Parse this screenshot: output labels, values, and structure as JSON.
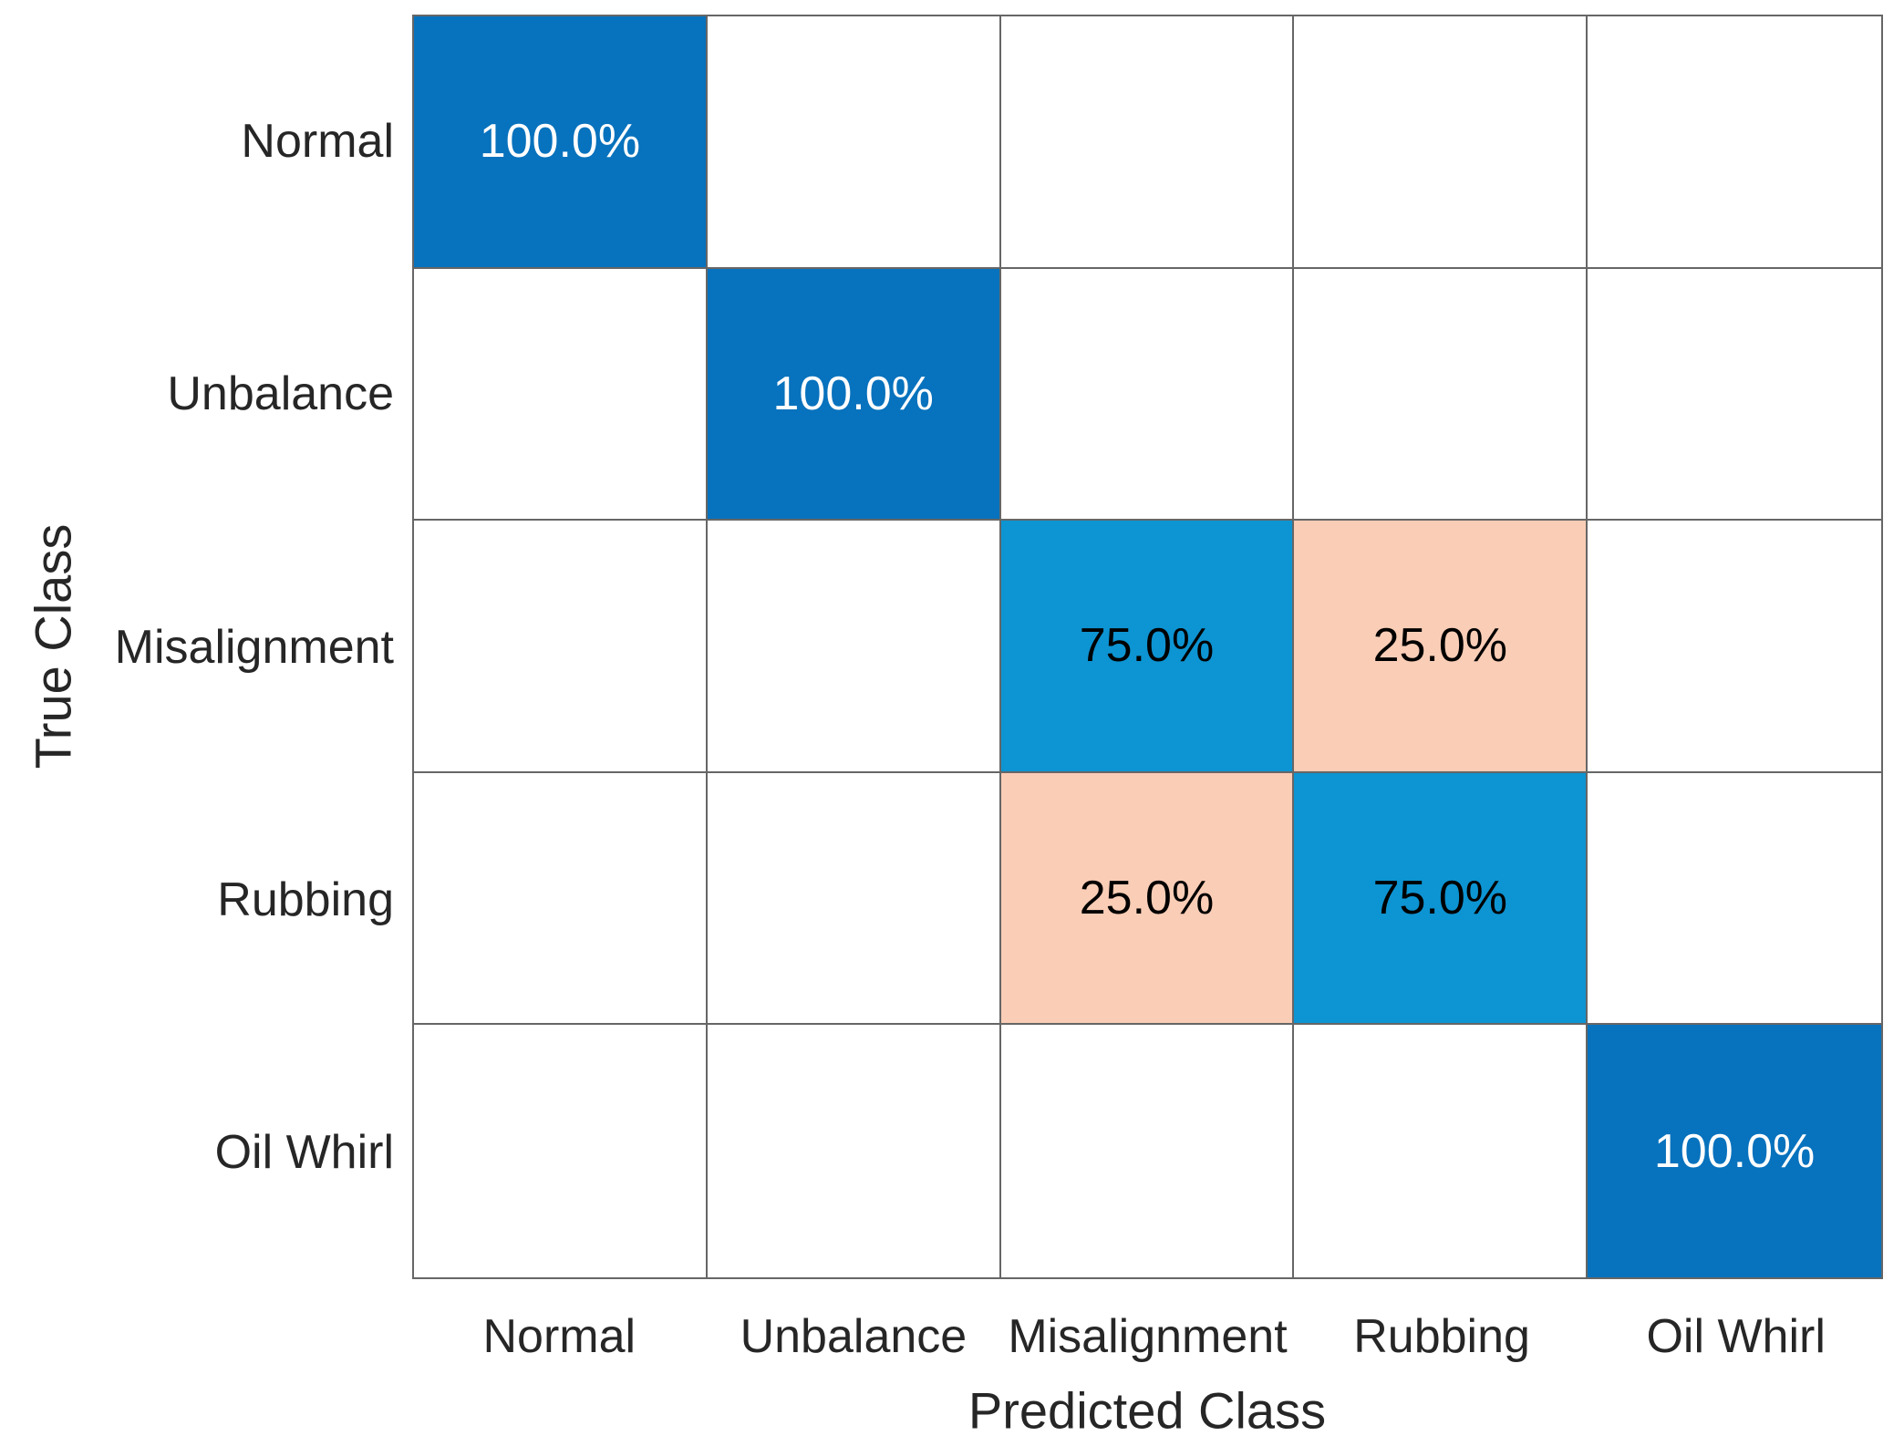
{
  "chart_data": {
    "type": "heatmap",
    "variant": "confusion-matrix",
    "title": "",
    "xlabel": "Predicted Class",
    "ylabel": "True Class",
    "classes": [
      "Normal",
      "Unbalance",
      "Misalignment",
      "Rubbing",
      "Oil Whirl"
    ],
    "x_tick_labels": [
      "Normal",
      "Unbalance",
      "Misalignment",
      "Rubbing",
      "Oil Whirl"
    ],
    "y_tick_labels": [
      "Normal",
      "Unbalance",
      "Misalignment",
      "Rubbing",
      "Oil Whirl"
    ],
    "values_percent": [
      [
        100.0,
        0,
        0,
        0,
        0
      ],
      [
        0,
        100.0,
        0,
        0,
        0
      ],
      [
        0,
        0,
        75.0,
        25.0,
        0
      ],
      [
        0,
        0,
        25.0,
        75.0,
        0
      ],
      [
        0,
        0,
        0,
        0,
        100.0
      ]
    ],
    "cell_labels": [
      [
        "100.0%",
        "",
        "",
        "",
        ""
      ],
      [
        "",
        "100.0%",
        "",
        "",
        ""
      ],
      [
        "",
        "",
        "75.0%",
        "25.0%",
        ""
      ],
      [
        "",
        "",
        "25.0%",
        "75.0%",
        ""
      ],
      [
        "",
        "",
        "",
        "",
        "100.0%"
      ]
    ],
    "cell_colors": [
      [
        "#0772BD",
        "#FFFFFF",
        "#FFFFFF",
        "#FFFFFF",
        "#FFFFFF"
      ],
      [
        "#FFFFFF",
        "#0772BD",
        "#FFFFFF",
        "#FFFFFF",
        "#FFFFFF"
      ],
      [
        "#FFFFFF",
        "#FFFFFF",
        "#0D94D2",
        "#FACDB6",
        "#FFFFFF"
      ],
      [
        "#FFFFFF",
        "#FFFFFF",
        "#FACDB6",
        "#0D94D2",
        "#FFFFFF"
      ],
      [
        "#FFFFFF",
        "#FFFFFF",
        "#FFFFFF",
        "#FFFFFF",
        "#0772BD"
      ]
    ],
    "cell_text_colors": [
      [
        "#FFFFFF",
        "",
        "",
        "",
        ""
      ],
      [
        "",
        "#FFFFFF",
        "",
        "",
        ""
      ],
      [
        "",
        "",
        "#000000",
        "#000000",
        ""
      ],
      [
        "",
        "",
        "#000000",
        "#000000",
        ""
      ],
      [
        "",
        "",
        "",
        "",
        "#FFFFFF"
      ]
    ],
    "colors": {
      "diagonal_strong_blue": "#0772BD",
      "diagonal_medium_blue": "#0D94D2",
      "off_diagonal_salmon": "#FACDB6",
      "grid_line": "#666666",
      "axis_text": "#262626"
    },
    "legend": "none",
    "grid": true
  }
}
